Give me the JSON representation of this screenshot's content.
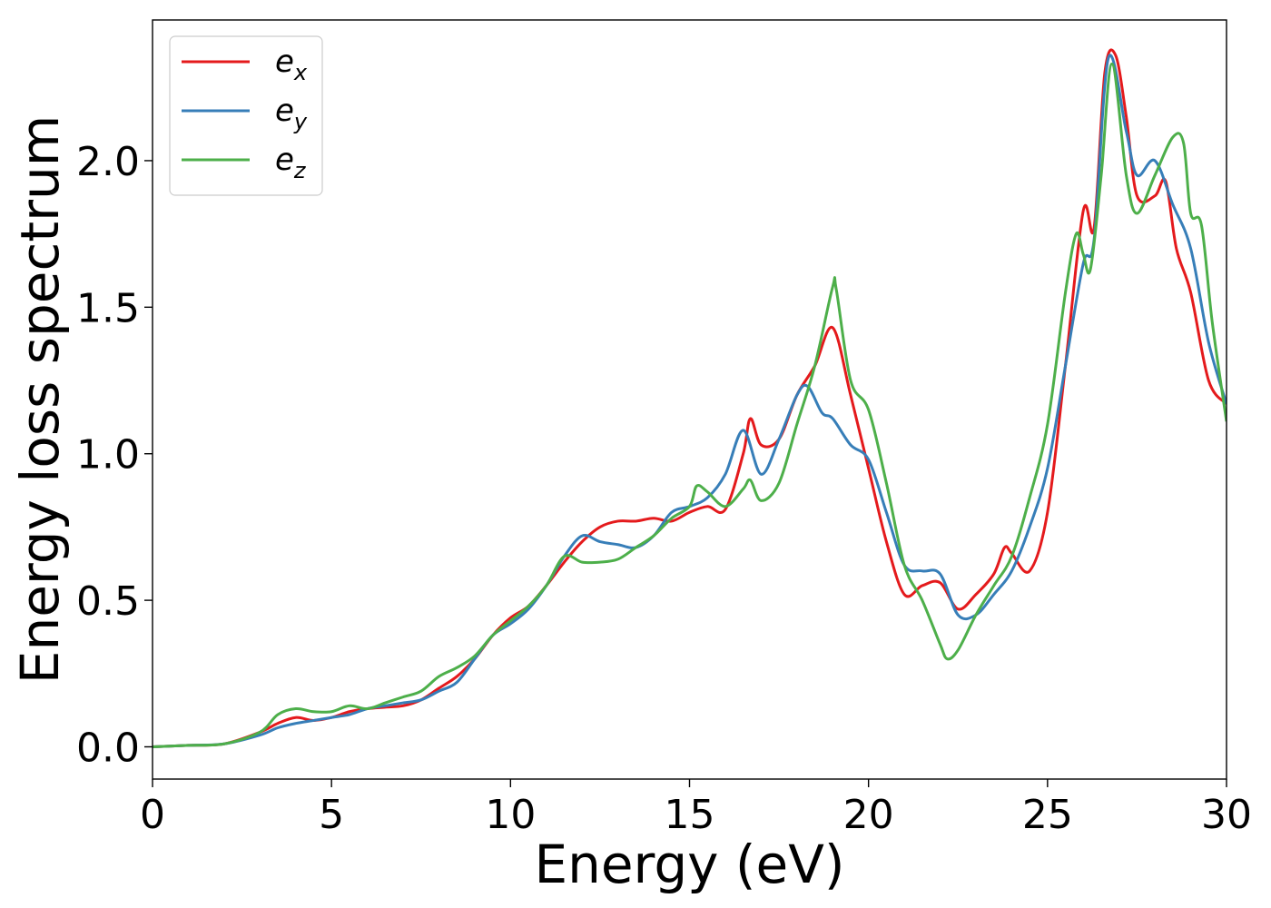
{
  "chart_data": {
    "type": "line",
    "title": "",
    "xlabel": "Energy (eV)",
    "ylabel": "Energy loss spectrum",
    "xlim": [
      0,
      30
    ],
    "ylim": [
      -0.11,
      2.48
    ],
    "xticks": [
      0,
      5,
      10,
      15,
      20,
      25,
      30
    ],
    "yticks": [
      0.0,
      0.5,
      1.0,
      1.5,
      2.0
    ],
    "xtick_labels": [
      "0",
      "5",
      "10",
      "15",
      "20",
      "25",
      "30"
    ],
    "ytick_labels": [
      "0.0",
      "0.5",
      "1.0",
      "1.5",
      "2.0"
    ],
    "grid": false,
    "legend_position": "top-left",
    "series": [
      {
        "name": "e_x",
        "legend_base": "e",
        "legend_sub": "x",
        "color": "#e41a1c",
        "x": [
          0,
          1,
          2,
          3,
          3.5,
          4,
          4.5,
          5,
          5.5,
          6,
          6.5,
          7,
          7.5,
          8,
          8.5,
          9,
          9.5,
          10,
          10.5,
          11,
          11.5,
          12,
          12.5,
          13,
          13.5,
          14,
          14.5,
          15,
          15.5,
          16,
          16.5,
          16.7,
          17,
          17.5,
          18,
          18.5,
          19,
          19.5,
          20,
          20.5,
          21,
          21.5,
          22,
          22.5,
          23,
          23.5,
          23.8,
          24,
          24.5,
          25,
          25.5,
          26,
          26.3,
          26.6,
          26.9,
          27.2,
          27.5,
          28,
          28.3,
          28.6,
          29,
          29.5,
          30
        ],
        "y": [
          0.0,
          0.005,
          0.01,
          0.05,
          0.08,
          0.1,
          0.09,
          0.1,
          0.12,
          0.13,
          0.135,
          0.14,
          0.16,
          0.2,
          0.24,
          0.3,
          0.38,
          0.44,
          0.48,
          0.55,
          0.63,
          0.7,
          0.75,
          0.77,
          0.77,
          0.78,
          0.77,
          0.8,
          0.82,
          0.81,
          1.0,
          1.12,
          1.03,
          1.05,
          1.2,
          1.3,
          1.43,
          1.2,
          0.95,
          0.7,
          0.52,
          0.55,
          0.56,
          0.47,
          0.52,
          0.59,
          0.68,
          0.66,
          0.6,
          0.8,
          1.3,
          1.83,
          1.77,
          2.3,
          2.36,
          2.15,
          1.88,
          1.88,
          1.93,
          1.7,
          1.55,
          1.25,
          1.17
        ]
      },
      {
        "name": "e_y",
        "legend_base": "e",
        "legend_sub": "y",
        "color": "#377eb8",
        "x": [
          0,
          1,
          2,
          3,
          3.5,
          4,
          4.5,
          5,
          5.5,
          6,
          6.5,
          7,
          7.5,
          8,
          8.5,
          9,
          9.5,
          10,
          10.5,
          11,
          11.5,
          12,
          12.5,
          13,
          13.5,
          14,
          14.5,
          15,
          15.5,
          16,
          16.5,
          17,
          17.5,
          18,
          18.3,
          18.7,
          19,
          19.5,
          20,
          20.5,
          21,
          21.5,
          22,
          22.5,
          23,
          23.5,
          24,
          24.5,
          25,
          25.5,
          26,
          26.3,
          26.7,
          27.2,
          27.5,
          28,
          28.5,
          29,
          29.5,
          30
        ],
        "y": [
          0.0,
          0.005,
          0.01,
          0.04,
          0.065,
          0.08,
          0.09,
          0.1,
          0.11,
          0.13,
          0.14,
          0.15,
          0.16,
          0.19,
          0.22,
          0.3,
          0.38,
          0.42,
          0.47,
          0.55,
          0.65,
          0.72,
          0.7,
          0.69,
          0.68,
          0.72,
          0.8,
          0.82,
          0.85,
          0.93,
          1.08,
          0.93,
          1.05,
          1.2,
          1.23,
          1.14,
          1.12,
          1.03,
          0.98,
          0.8,
          0.62,
          0.6,
          0.59,
          0.45,
          0.45,
          0.52,
          0.6,
          0.75,
          0.95,
          1.3,
          1.65,
          1.73,
          2.35,
          2.1,
          1.95,
          2.0,
          1.85,
          1.7,
          1.38,
          1.17
        ]
      },
      {
        "name": "e_z",
        "legend_base": "e",
        "legend_sub": "z",
        "color": "#4daf4a",
        "x": [
          0,
          1,
          2,
          3,
          3.5,
          4,
          4.5,
          5,
          5.5,
          6,
          6.5,
          7,
          7.5,
          8,
          8.5,
          9,
          9.5,
          10,
          10.5,
          11,
          11.5,
          12,
          12.5,
          13,
          13.5,
          14,
          14.5,
          15,
          15.2,
          15.5,
          16,
          16.5,
          16.7,
          17,
          17.5,
          18,
          18.5,
          19,
          19.1,
          19.5,
          20,
          20.5,
          21,
          21.5,
          22,
          22.2,
          22.5,
          23,
          23.5,
          24,
          24.5,
          25,
          25.5,
          25.8,
          26,
          26.2,
          26.5,
          26.8,
          27.2,
          27.5,
          28,
          28.5,
          28.8,
          29,
          29.3,
          29.6,
          30
        ],
        "y": [
          0.0,
          0.005,
          0.01,
          0.05,
          0.11,
          0.13,
          0.12,
          0.12,
          0.14,
          0.13,
          0.15,
          0.17,
          0.19,
          0.24,
          0.27,
          0.31,
          0.38,
          0.43,
          0.48,
          0.55,
          0.65,
          0.63,
          0.63,
          0.64,
          0.68,
          0.72,
          0.78,
          0.82,
          0.89,
          0.87,
          0.82,
          0.88,
          0.91,
          0.84,
          0.9,
          1.1,
          1.3,
          1.57,
          1.56,
          1.25,
          1.15,
          0.9,
          0.62,
          0.5,
          0.35,
          0.3,
          0.33,
          0.45,
          0.55,
          0.65,
          0.85,
          1.1,
          1.55,
          1.75,
          1.68,
          1.63,
          1.95,
          2.33,
          1.95,
          1.82,
          1.95,
          2.08,
          2.06,
          1.82,
          1.78,
          1.45,
          1.11
        ]
      }
    ]
  }
}
